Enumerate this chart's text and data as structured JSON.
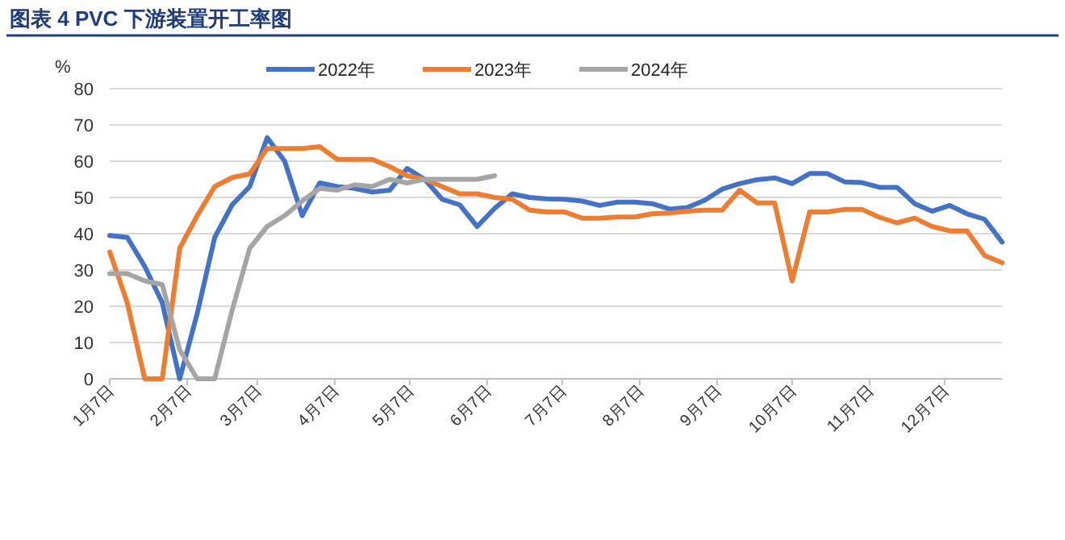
{
  "chart_data": {
    "type": "line",
    "title": "图表 4 PVC 下游装置开工率图",
    "ylabel": "%",
    "x": [
      "--01-07",
      "--01-14",
      "--01-21",
      "--01-28",
      "--02-04",
      "--02-11",
      "--02-18",
      "--02-25",
      "--03-04",
      "--03-11",
      "--03-18",
      "--03-25",
      "--04-01",
      "--04-08",
      "--04-15",
      "--04-22",
      "--04-29",
      "--05-06",
      "--05-13",
      "--05-20",
      "--05-27",
      "--06-03",
      "--06-10",
      "--06-17",
      "--06-24",
      "--07-01",
      "--07-08",
      "--07-15",
      "--07-22",
      "--07-29",
      "--08-05",
      "--08-12",
      "--08-19",
      "--08-26",
      "--09-02",
      "--09-09",
      "--09-16",
      "--09-23",
      "--09-30",
      "--10-07",
      "--10-14",
      "--10-21",
      "--10-28",
      "--11-04",
      "--11-11",
      "--11-18",
      "--11-25",
      "--12-02",
      "--12-09",
      "--12-16",
      "--12-23",
      "--12-30"
    ],
    "series": [
      {
        "name": "2022年",
        "color": "#4472c4",
        "values": [
          39.5,
          39,
          31,
          21,
          0,
          18,
          39,
          48,
          53,
          66.5,
          60,
          45,
          54,
          53,
          52.5,
          51.5,
          52,
          58,
          55,
          49.5,
          48,
          42,
          47,
          51,
          50,
          49.6,
          49.5,
          49,
          47.8,
          48.7,
          48.7,
          48.3,
          46.8,
          47.2,
          49.2,
          52.3,
          53.8,
          54.9,
          55.4,
          53.8,
          56.6,
          56.6,
          54.3,
          54.1,
          52.8,
          52.8,
          48.3,
          46.2,
          47.8,
          45.5,
          44,
          37.7
        ]
      },
      {
        "name": "2023年",
        "color": "#ed7d31",
        "values": [
          35,
          21,
          0,
          0,
          36,
          45,
          53,
          55.5,
          56.5,
          63.5,
          63.5,
          63.5,
          64,
          60.5,
          60.5,
          60.5,
          58.5,
          56,
          55,
          53,
          51,
          51,
          50,
          49.5,
          46.5,
          46,
          46,
          44.3,
          44.3,
          44.6,
          44.6,
          45.5,
          45.7,
          46.2,
          46.5,
          46.5,
          52,
          48.5,
          48.5,
          27,
          46,
          46,
          46.7,
          46.7,
          44.5,
          43,
          44.3,
          42,
          40.8,
          40.8,
          34,
          32
        ]
      },
      {
        "name": "2024年",
        "color": "#a5a5a5",
        "x": [
          "--01-07",
          "--01-14",
          "--01-21",
          "--01-28",
          "--02-04",
          "--02-11",
          "--02-18",
          "--02-25",
          "--03-04",
          "--03-11",
          "--03-18",
          "--03-25",
          "--04-01",
          "--04-08",
          "--04-15",
          "--04-22",
          "--04-29",
          "--05-06",
          "--05-13",
          "--05-20",
          "--05-27",
          "--06-03",
          "--06-10"
        ],
        "values": [
          29,
          29,
          27,
          26,
          8,
          0,
          0,
          19,
          36,
          42,
          45,
          49,
          52.5,
          52,
          53.5,
          53,
          55,
          54,
          55,
          55,
          55,
          55,
          56
        ]
      }
    ],
    "xlim": [
      "--01-07",
      "--12-30"
    ],
    "xticks": [
      {
        "value": "--01-07",
        "label": "1月7日"
      },
      {
        "value": "--02-07",
        "label": "2月7日"
      },
      {
        "value": "--03-07",
        "label": "3月7日"
      },
      {
        "value": "--04-07",
        "label": "4月7日"
      },
      {
        "value": "--05-07",
        "label": "5月7日"
      },
      {
        "value": "--06-07",
        "label": "6月7日"
      },
      {
        "value": "--07-07",
        "label": "7月7日"
      },
      {
        "value": "--08-07",
        "label": "8月7日"
      },
      {
        "value": "--09-07",
        "label": "9月7日"
      },
      {
        "value": "--10-07",
        "label": "10月7日"
      },
      {
        "value": "--11-07",
        "label": "11月7日"
      },
      {
        "value": "--12-07",
        "label": "12月7日"
      }
    ],
    "ylim": [
      0,
      80
    ],
    "yticks": [
      0,
      10,
      20,
      30,
      40,
      50,
      60,
      70,
      80
    ],
    "grid": "y",
    "legend": "top",
    "line_style": "solid"
  }
}
